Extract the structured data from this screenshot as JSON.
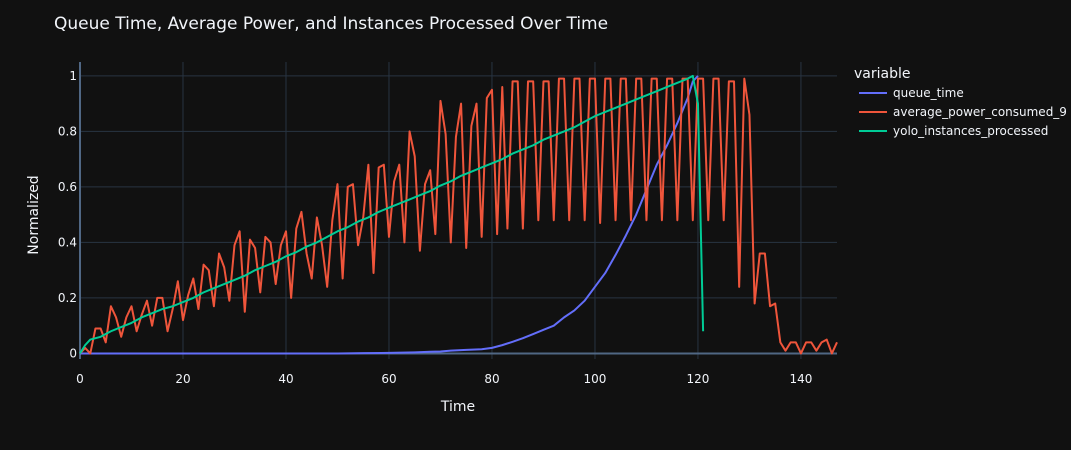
{
  "chart_data": {
    "type": "line",
    "title": "Queue Time, Average Power, and Instances Processed Over Time",
    "xlabel": "Time",
    "ylabel": "Normalized",
    "xlim": [
      0,
      147
    ],
    "ylim": [
      -0.02,
      1.05
    ],
    "x_ticks": [
      0,
      20,
      40,
      60,
      80,
      100,
      120,
      140
    ],
    "y_ticks": [
      0,
      0.2,
      0.4,
      0.6,
      0.8,
      1
    ],
    "grid": true,
    "legend_title": "variable",
    "legend_position": "right",
    "colors": {
      "background": "#111111",
      "grid": "#283442",
      "text": "#f2f5fa"
    },
    "series": [
      {
        "name": "queue_time",
        "color": "#636efa",
        "x": [
          0,
          10,
          20,
          30,
          40,
          50,
          55,
          60,
          65,
          68,
          70,
          72,
          75,
          78,
          80,
          82,
          84,
          86,
          88,
          90,
          92,
          94,
          96,
          98,
          100,
          102,
          104,
          106,
          108,
          110,
          112,
          114,
          116,
          118,
          119,
          120
        ],
        "y": [
          0,
          0,
          0,
          0,
          0,
          0,
          0.001,
          0.002,
          0.004,
          0.006,
          0.007,
          0.01,
          0.013,
          0.015,
          0.02,
          0.03,
          0.042,
          0.055,
          0.07,
          0.085,
          0.1,
          0.13,
          0.155,
          0.19,
          0.24,
          0.29,
          0.355,
          0.425,
          0.5,
          0.59,
          0.68,
          0.75,
          0.83,
          0.92,
          0.98,
          1.0
        ]
      },
      {
        "name": "average_power_consumed_9",
        "color": "#ef553b",
        "x": [
          0,
          1,
          2,
          3,
          4,
          5,
          6,
          7,
          8,
          9,
          10,
          11,
          12,
          13,
          14,
          15,
          16,
          17,
          18,
          19,
          20,
          21,
          22,
          23,
          24,
          25,
          26,
          27,
          28,
          29,
          30,
          31,
          32,
          33,
          34,
          35,
          36,
          37,
          38,
          39,
          40,
          41,
          42,
          43,
          44,
          45,
          46,
          47,
          48,
          49,
          50,
          51,
          52,
          53,
          54,
          55,
          56,
          57,
          58,
          59,
          60,
          61,
          62,
          63,
          64,
          65,
          66,
          67,
          68,
          69,
          70,
          71,
          72,
          73,
          74,
          75,
          76,
          77,
          78,
          79,
          80,
          81,
          82,
          83,
          84,
          85,
          86,
          87,
          88,
          89,
          90,
          91,
          92,
          93,
          94,
          95,
          96,
          97,
          98,
          99,
          100,
          101,
          102,
          103,
          104,
          105,
          106,
          107,
          108,
          109,
          110,
          111,
          112,
          113,
          114,
          115,
          116,
          117,
          118,
          119,
          120,
          121,
          122,
          123,
          124,
          125,
          126,
          127,
          128,
          129,
          130,
          131,
          132,
          133,
          134,
          135,
          136,
          137,
          138,
          139,
          140,
          141,
          142,
          143,
          144,
          145,
          146,
          147
        ],
        "y": [
          0,
          0.02,
          0,
          0.09,
          0.09,
          0.04,
          0.17,
          0.13,
          0.06,
          0.13,
          0.17,
          0.08,
          0.14,
          0.19,
          0.1,
          0.2,
          0.2,
          0.08,
          0.16,
          0.26,
          0.12,
          0.21,
          0.27,
          0.16,
          0.32,
          0.3,
          0.17,
          0.36,
          0.31,
          0.19,
          0.39,
          0.44,
          0.15,
          0.41,
          0.38,
          0.22,
          0.42,
          0.4,
          0.25,
          0.39,
          0.44,
          0.2,
          0.45,
          0.51,
          0.36,
          0.27,
          0.49,
          0.39,
          0.24,
          0.48,
          0.61,
          0.27,
          0.6,
          0.61,
          0.39,
          0.49,
          0.68,
          0.29,
          0.67,
          0.68,
          0.42,
          0.62,
          0.68,
          0.4,
          0.8,
          0.71,
          0.37,
          0.61,
          0.66,
          0.43,
          0.91,
          0.79,
          0.4,
          0.78,
          0.9,
          0.38,
          0.82,
          0.9,
          0.42,
          0.92,
          0.95,
          0.43,
          0.96,
          0.45,
          0.98,
          0.98,
          0.45,
          0.98,
          0.98,
          0.48,
          0.98,
          0.98,
          0.48,
          0.99,
          0.99,
          0.48,
          0.99,
          0.99,
          0.48,
          0.99,
          0.99,
          0.47,
          0.99,
          0.99,
          0.48,
          0.99,
          0.99,
          0.48,
          0.99,
          0.99,
          0.48,
          0.99,
          0.99,
          0.48,
          0.99,
          0.99,
          0.48,
          0.99,
          0.99,
          0.48,
          0.99,
          0.99,
          0.48,
          0.99,
          0.99,
          0.48,
          0.98,
          0.98,
          0.24,
          0.99,
          0.86,
          0.18,
          0.36,
          0.36,
          0.17,
          0.18,
          0.04,
          0.01,
          0.04,
          0.04,
          0,
          0.04,
          0.04,
          0.01,
          0.04,
          0.05,
          0,
          0.04
        ]
      },
      {
        "name": "yolo_instances_processed",
        "color": "#00cc96",
        "x": [
          0,
          1,
          2,
          4,
          6,
          8,
          10,
          12,
          14,
          16,
          18,
          20,
          22,
          24,
          26,
          28,
          30,
          32,
          34,
          36,
          38,
          40,
          42,
          44,
          46,
          48,
          50,
          52,
          54,
          56,
          58,
          60,
          62,
          64,
          66,
          68,
          70,
          72,
          74,
          76,
          78,
          80,
          82,
          84,
          86,
          88,
          90,
          92,
          94,
          96,
          98,
          100,
          102,
          104,
          106,
          108,
          110,
          112,
          114,
          116,
          118,
          119,
          120,
          121
        ],
        "y": [
          0,
          0.03,
          0.05,
          0.06,
          0.08,
          0.095,
          0.11,
          0.13,
          0.145,
          0.16,
          0.17,
          0.185,
          0.2,
          0.22,
          0.235,
          0.25,
          0.265,
          0.28,
          0.3,
          0.315,
          0.33,
          0.35,
          0.365,
          0.385,
          0.4,
          0.42,
          0.44,
          0.455,
          0.475,
          0.49,
          0.51,
          0.525,
          0.54,
          0.555,
          0.57,
          0.585,
          0.605,
          0.62,
          0.64,
          0.655,
          0.67,
          0.685,
          0.7,
          0.72,
          0.735,
          0.75,
          0.77,
          0.785,
          0.8,
          0.815,
          0.835,
          0.855,
          0.87,
          0.885,
          0.9,
          0.915,
          0.93,
          0.945,
          0.96,
          0.975,
          0.99,
          1.0,
          0.9,
          0.08
        ]
      }
    ]
  }
}
